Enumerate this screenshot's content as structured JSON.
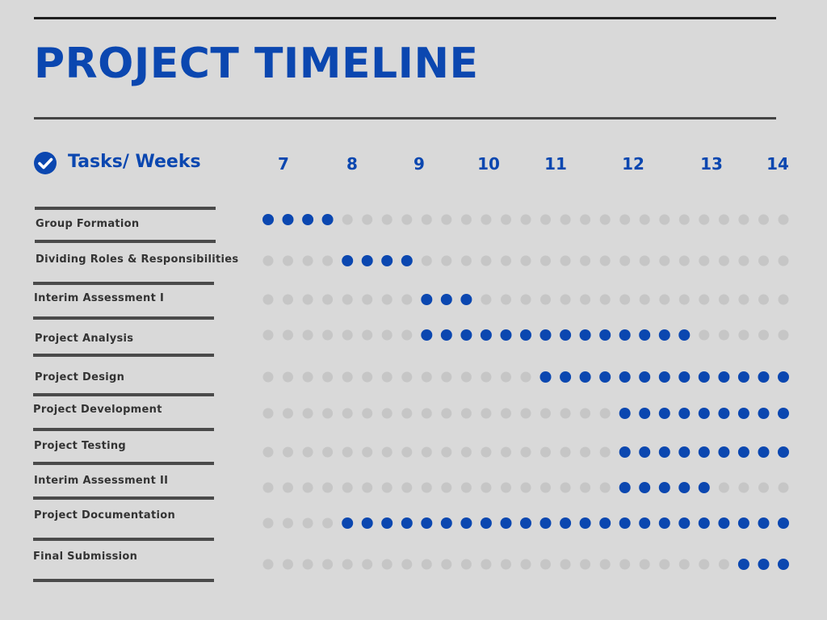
{
  "title": "PROJECT TIMELINE",
  "header": {
    "label": "Tasks/ Weeks",
    "icon": "check-circle-icon"
  },
  "colors": {
    "accent": "#0b47b0",
    "dot_active": "#0b47b0",
    "dot_inactive": "#c6c6c6",
    "background": "#d9d9d9",
    "label_text": "#333333"
  },
  "chart_data": {
    "type": "timeline",
    "title": "PROJECT TIMELINE",
    "xlabel": "Tasks/ Weeks",
    "weeks": [
      "7",
      "8",
      "9",
      "10",
      "11",
      "12",
      "13",
      "14"
    ],
    "slots_per_row": 27,
    "tasks": [
      {
        "name": "Group Formation",
        "active_slots": [
          0,
          1,
          2,
          3
        ]
      },
      {
        "name": "Dividing Roles & Responsibilities",
        "active_slots": [
          4,
          5,
          6,
          7
        ]
      },
      {
        "name": "Interim Assessment I",
        "active_slots": [
          8,
          9,
          10
        ]
      },
      {
        "name": "Project Analysis",
        "active_slots": [
          8,
          9,
          10,
          11,
          12,
          13,
          14,
          15,
          16,
          17,
          18,
          19,
          20,
          21
        ]
      },
      {
        "name": "Project Design",
        "active_slots": [
          14,
          15,
          16,
          17,
          18,
          19,
          20,
          21,
          22,
          23,
          24,
          25,
          26
        ]
      },
      {
        "name": "Project Development",
        "active_slots": [
          18,
          19,
          20,
          21,
          22,
          23,
          24,
          25,
          26
        ]
      },
      {
        "name": "Project Testing",
        "active_slots": [
          18,
          19,
          20,
          21,
          22,
          23,
          24,
          25,
          26
        ]
      },
      {
        "name": "Interim Assessment II",
        "active_slots": [
          18,
          19,
          20,
          21,
          22
        ]
      },
      {
        "name": "Project Documentation",
        "active_slots": [
          4,
          5,
          6,
          7,
          8,
          9,
          10,
          11,
          12,
          13,
          14,
          15,
          16,
          17,
          18,
          19,
          20,
          21,
          22,
          23,
          24,
          25,
          26
        ]
      },
      {
        "name": "Final Submission",
        "active_slots": [
          24,
          25,
          26
        ]
      }
    ]
  }
}
